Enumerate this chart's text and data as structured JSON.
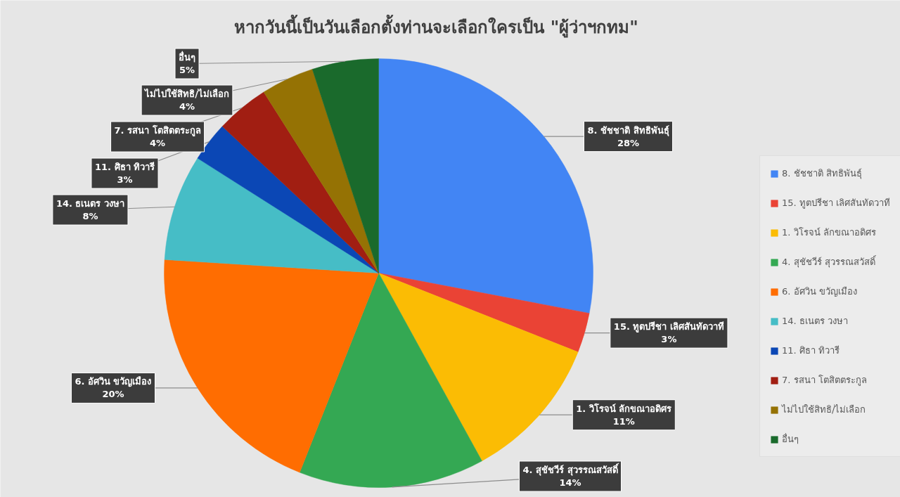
{
  "chart_data": {
    "type": "pie",
    "title": "หากวันนี้เป็นวันเลือกตั้งท่านจะเลือกใครเป็น \"ผู้ว่าฯกทม\"",
    "categories": [
      "8. ชัชชาติ สิทธิพันธุ์",
      "15. ทูตปรีชา เลิศสันทัดวาที",
      "1. วิโรจน์ ลักขณาอดิศร",
      "4. สุชัชวีร์ สุวรรณสวัสดิ์",
      "6. อัศวิน ขวัญเมือง",
      "14. ธเนตร วงษา",
      "11. ศิธา ทิวารี",
      "7. รสนา โตสิตตระกูล",
      "ไม่ไปใช้สิทธิ/ไม่เลือก",
      "อื่นๆ"
    ],
    "values": [
      28,
      3,
      11,
      14,
      20,
      8,
      3,
      4,
      4,
      5
    ],
    "value_labels": [
      "28%",
      "3%",
      "11%",
      "14%",
      "20%",
      "8%",
      "3%",
      "4%",
      "4%",
      "5%"
    ],
    "colors": [
      "#4285f4",
      "#ea4335",
      "#fbbc04",
      "#34a853",
      "#ff6d01",
      "#46bdc6",
      "#0b47b5",
      "#a11e12",
      "#957204",
      "#1a6a2c"
    ],
    "legend": "right"
  }
}
